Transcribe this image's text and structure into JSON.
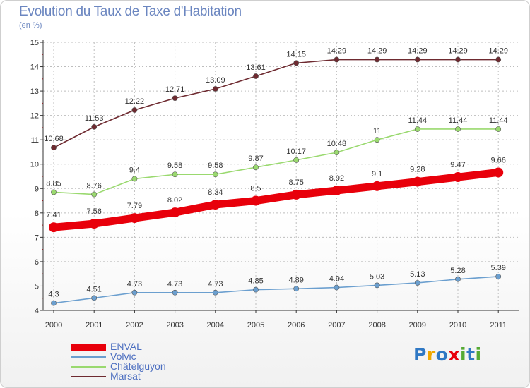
{
  "header": {
    "title": "Evolution du Taux de Taxe d'Habitation",
    "subtitle": "(en %)"
  },
  "logo": {
    "letters": [
      "P",
      "r",
      "o",
      "x",
      "i",
      "t",
      "i"
    ]
  },
  "colors": {
    "accent": "#e8000b",
    "volvic": "#6b9fcf",
    "chatelguyon": "#9ad96f",
    "marsat": "#6e2a30",
    "axis": "#333333",
    "grid": "#bdbdbd",
    "logo": [
      "#2f78c4",
      "#f0a800",
      "#2f78c4",
      "#e8000b",
      "#55aa33",
      "#2f78c4",
      "#55aa33"
    ]
  },
  "chart_data": {
    "type": "line",
    "title": "Evolution du Taux de Taxe d'Habitation",
    "ylabel": "(en %)",
    "ylim": [
      4,
      15
    ],
    "yticks": [
      4,
      5,
      6,
      7,
      8,
      9,
      10,
      11,
      12,
      13,
      14,
      15
    ],
    "grid": true,
    "legend_position": "bottom-left",
    "x": [
      "2000",
      "2001",
      "2002",
      "2003",
      "2004",
      "2005",
      "2006",
      "2007",
      "2008",
      "2009",
      "2010",
      "2011"
    ],
    "series": [
      {
        "name": "ENVAL",
        "color": "#e8000b",
        "values": [
          7.41,
          7.56,
          7.79,
          8.02,
          8.34,
          8.5,
          8.75,
          8.92,
          9.1,
          9.28,
          9.47,
          9.66
        ]
      },
      {
        "name": "Volvic",
        "color": "#6b9fcf",
        "values": [
          4.3,
          4.51,
          4.73,
          4.73,
          4.73,
          4.85,
          4.89,
          4.94,
          5.03,
          5.13,
          5.28,
          5.39
        ]
      },
      {
        "name": "Châtelguyon",
        "color": "#9ad96f",
        "values": [
          8.85,
          8.76,
          9.4,
          9.58,
          9.58,
          9.87,
          10.17,
          10.48,
          11,
          11.44,
          11.44,
          11.44
        ]
      },
      {
        "name": "Marsat",
        "color": "#6e2a30",
        "values": [
          10.68,
          11.53,
          12.22,
          12.71,
          13.09,
          13.61,
          14.15,
          14.29,
          14.29,
          14.29,
          14.29,
          14.29
        ]
      }
    ]
  }
}
